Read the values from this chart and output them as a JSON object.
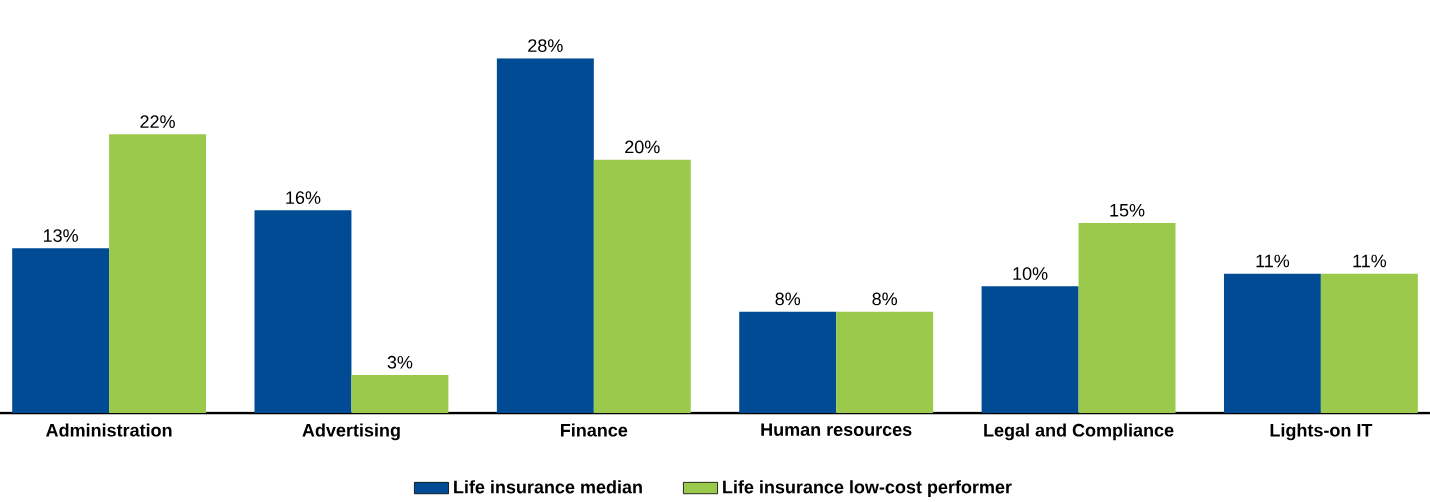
{
  "chart_data": {
    "type": "bar",
    "categories": [
      "Administration",
      "Advertising",
      "Finance",
      "Human resources",
      "Legal and Compliance",
      "Lights-on IT"
    ],
    "series": [
      {
        "name": "Life insurance median",
        "color": "#004b93",
        "values": [
          13,
          16,
          28,
          8,
          10,
          11
        ],
        "value_labels": [
          "13%",
          "16%",
          "28%",
          "8%",
          "10%",
          "11%"
        ]
      },
      {
        "name": "Life insurance low-cost performer",
        "color": "#9bc94b",
        "values": [
          22,
          3,
          20,
          8,
          15,
          11
        ],
        "value_labels": [
          "22%",
          "3%",
          "20%",
          "8%",
          "15%",
          "11%"
        ]
      }
    ],
    "legend": "bottom"
  }
}
